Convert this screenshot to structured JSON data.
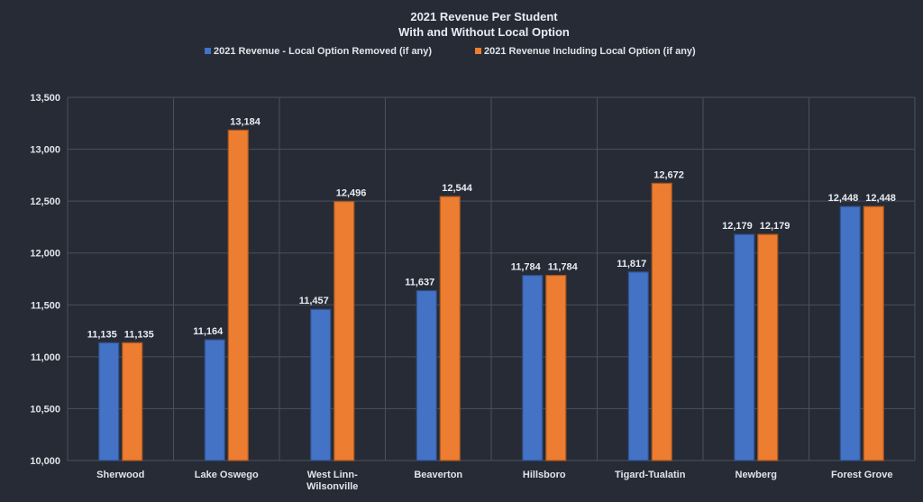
{
  "chart_data": {
    "type": "bar",
    "title": [
      "2021 Revenue Per Student",
      "With and Without Local Option"
    ],
    "categories": [
      [
        "Sherwood"
      ],
      [
        "Lake Oswego"
      ],
      [
        "West Linn-",
        "Wilsonville"
      ],
      [
        "Beaverton"
      ],
      [
        "Hillsboro"
      ],
      [
        "Tigard-Tualatin"
      ],
      [
        "Newberg"
      ],
      [
        "Forest Grove"
      ]
    ],
    "series": [
      {
        "name": "2021 Revenue - Local Option Removed (if any)",
        "color": "#4472c4",
        "values": [
          11135,
          11164,
          11457,
          11637,
          11784,
          11817,
          12179,
          12448
        ],
        "labels": [
          "11,135",
          "11,164",
          "11,457",
          "11,637",
          "11,784",
          "11,817",
          "12,179",
          "12,448"
        ]
      },
      {
        "name": "2021 Revenue Including Local Option (if any)",
        "color": "#ed7d31",
        "values": [
          11135,
          13184,
          12496,
          12544,
          11784,
          12672,
          12179,
          12448
        ],
        "labels": [
          "11,135",
          "13,184",
          "12,496",
          "12,544",
          "11,784",
          "12,672",
          "12,179",
          "12,448"
        ]
      }
    ],
    "ylim": [
      10000,
      13500
    ],
    "yticks": [
      {
        "value": 10000,
        "label": "10,000"
      },
      {
        "value": 10500,
        "label": "10,500"
      },
      {
        "value": 11000,
        "label": "11,000"
      },
      {
        "value": 11500,
        "label": "11,500"
      },
      {
        "value": 12000,
        "label": "12,000"
      },
      {
        "value": 12500,
        "label": "12,500"
      },
      {
        "value": 13000,
        "label": "13,000"
      },
      {
        "value": 13500,
        "label": "13,500"
      }
    ],
    "grid": true,
    "legend_position": "top"
  },
  "colors": {
    "background": "#262b35",
    "grid": "#4a5060",
    "text": "#e0e4ea"
  }
}
